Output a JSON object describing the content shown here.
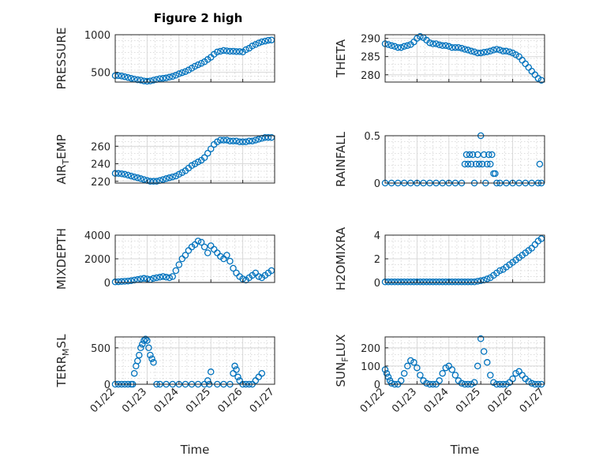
{
  "figure": {
    "title": "Figure 2 high",
    "background": "#ffffff",
    "marker_color": "#0072bd",
    "marker": "open-circle"
  },
  "chart_data": [
    {
      "type": "scatter",
      "ylabel": "PRESSURE",
      "xlabel": "",
      "xlim": [
        0,
        5
      ],
      "ylim": [
        370,
        1000
      ],
      "yticks": [
        500,
        1000
      ],
      "yticklabels": [
        "500",
        "1000"
      ],
      "xticklabels": [],
      "grid": true,
      "x": [
        0,
        0.1,
        0.2,
        0.3,
        0.4,
        0.5,
        0.6,
        0.7,
        0.8,
        0.9,
        1.0,
        1.1,
        1.2,
        1.3,
        1.4,
        1.5,
        1.6,
        1.7,
        1.8,
        1.9,
        2.0,
        2.1,
        2.2,
        2.3,
        2.4,
        2.5,
        2.6,
        2.7,
        2.8,
        2.9,
        3.0,
        3.1,
        3.2,
        3.3,
        3.4,
        3.5,
        3.6,
        3.7,
        3.8,
        3.9,
        4.0,
        4.1,
        4.2,
        4.3,
        4.4,
        4.5,
        4.6,
        4.7,
        4.8,
        4.9
      ],
      "y": [
        455,
        455,
        450,
        440,
        430,
        420,
        410,
        400,
        395,
        385,
        380,
        385,
        395,
        405,
        415,
        420,
        425,
        435,
        445,
        460,
        480,
        495,
        510,
        530,
        555,
        580,
        600,
        620,
        640,
        670,
        700,
        740,
        770,
        780,
        790,
        785,
        780,
        780,
        775,
        775,
        770,
        800,
        820,
        850,
        870,
        890,
        905,
        915,
        925,
        930
      ]
    },
    {
      "type": "scatter",
      "ylabel": "THETA",
      "xlabel": "",
      "xlim": [
        0,
        5
      ],
      "ylim": [
        278,
        291
      ],
      "yticks": [
        280,
        285,
        290
      ],
      "yticklabels": [
        "280",
        "285",
        "290"
      ],
      "xticklabels": [],
      "grid": true,
      "x": [
        0,
        0.1,
        0.2,
        0.3,
        0.4,
        0.5,
        0.6,
        0.7,
        0.8,
        0.9,
        1.0,
        1.1,
        1.2,
        1.3,
        1.4,
        1.5,
        1.6,
        1.7,
        1.8,
        1.9,
        2.0,
        2.1,
        2.2,
        2.3,
        2.4,
        2.5,
        2.6,
        2.7,
        2.8,
        2.9,
        3.0,
        3.1,
        3.2,
        3.3,
        3.4,
        3.5,
        3.6,
        3.7,
        3.8,
        3.9,
        4.0,
        4.1,
        4.2,
        4.3,
        4.4,
        4.5,
        4.6,
        4.7,
        4.8,
        4.9
      ],
      "y": [
        288.5,
        288.3,
        288,
        287.8,
        287.5,
        287.5,
        287.8,
        288,
        288.3,
        289,
        290,
        290.5,
        290.2,
        289.5,
        288.8,
        288.5,
        288.5,
        288.2,
        288,
        288,
        287.8,
        287.5,
        287.5,
        287.5,
        287.3,
        287,
        286.8,
        286.5,
        286.3,
        286,
        286,
        286.2,
        286.3,
        286.5,
        286.8,
        287,
        286.8,
        286.5,
        286.5,
        286.3,
        286,
        285.5,
        285,
        284,
        283,
        282,
        281,
        280,
        279,
        278.5
      ]
    },
    {
      "type": "scatter",
      "ylabel": "AIR_TEMP",
      "xlabel": "",
      "xlim": [
        0,
        5
      ],
      "ylim": [
        218,
        272
      ],
      "yticks": [
        220,
        240,
        260
      ],
      "yticklabels": [
        "220",
        "240",
        "260"
      ],
      "xticklabels": [],
      "grid": true,
      "x": [
        0,
        0.1,
        0.2,
        0.3,
        0.4,
        0.5,
        0.6,
        0.7,
        0.8,
        0.9,
        1.0,
        1.1,
        1.2,
        1.3,
        1.4,
        1.5,
        1.6,
        1.7,
        1.8,
        1.9,
        2.0,
        2.1,
        2.2,
        2.3,
        2.4,
        2.5,
        2.6,
        2.7,
        2.8,
        2.9,
        3.0,
        3.1,
        3.2,
        3.3,
        3.4,
        3.5,
        3.6,
        3.7,
        3.8,
        3.9,
        4.0,
        4.1,
        4.2,
        4.3,
        4.4,
        4.5,
        4.6,
        4.7,
        4.8,
        4.9
      ],
      "y": [
        229,
        229,
        228.5,
        228,
        227,
        226,
        225,
        224,
        223,
        222,
        221,
        220,
        220,
        220,
        221,
        222,
        223,
        224,
        225,
        226,
        228,
        230,
        232,
        235,
        238,
        240,
        242,
        244,
        247,
        252,
        257,
        262,
        265,
        267,
        267,
        267,
        266,
        266,
        266,
        265,
        265,
        265,
        266,
        266,
        267,
        268,
        269,
        270,
        270,
        270
      ]
    },
    {
      "type": "scatter",
      "ylabel": "RAINFALL",
      "xlabel": "",
      "xlim": [
        0,
        5
      ],
      "ylim": [
        0,
        0.5
      ],
      "yticks": [
        0,
        0.5
      ],
      "yticklabels": [
        "0",
        "0.5"
      ],
      "xticklabels": [],
      "grid": true,
      "x": [
        0,
        0.2,
        0.4,
        0.6,
        0.8,
        1.0,
        1.2,
        1.4,
        1.6,
        1.8,
        2.0,
        2.2,
        2.4,
        2.5,
        2.55,
        2.6,
        2.65,
        2.7,
        2.75,
        2.8,
        2.85,
        2.9,
        2.95,
        3.0,
        3.05,
        3.1,
        3.15,
        3.2,
        3.25,
        3.3,
        3.35,
        3.4,
        3.45,
        3.5,
        3.6,
        3.8,
        4.0,
        4.2,
        4.4,
        4.6,
        4.8,
        4.85,
        4.9
      ],
      "y": [
        0,
        0,
        0,
        0,
        0,
        0,
        0,
        0,
        0,
        0,
        0,
        0,
        0,
        0.2,
        0.3,
        0.2,
        0.3,
        0.2,
        0.3,
        0,
        0.2,
        0.3,
        0.2,
        0.5,
        0.2,
        0.3,
        0,
        0.2,
        0.3,
        0.2,
        0.3,
        0.1,
        0.1,
        0,
        0,
        0,
        0,
        0,
        0,
        0,
        0,
        0.2,
        0
      ]
    },
    {
      "type": "scatter",
      "ylabel": "MIXDEPTH",
      "xlabel": "",
      "xlim": [
        0,
        5
      ],
      "ylim": [
        0,
        4000
      ],
      "yticks": [
        0,
        2000,
        4000
      ],
      "yticklabels": [
        "0",
        "2000",
        "4000"
      ],
      "xticklabels": [],
      "grid": true,
      "x": [
        0,
        0.1,
        0.2,
        0.3,
        0.4,
        0.5,
        0.6,
        0.7,
        0.8,
        0.9,
        1.0,
        1.1,
        1.2,
        1.3,
        1.4,
        1.5,
        1.6,
        1.7,
        1.8,
        1.9,
        2.0,
        2.1,
        2.2,
        2.3,
        2.4,
        2.5,
        2.6,
        2.7,
        2.8,
        2.9,
        3.0,
        3.1,
        3.2,
        3.3,
        3.4,
        3.5,
        3.6,
        3.7,
        3.8,
        3.9,
        4.0,
        4.1,
        4.2,
        4.3,
        4.4,
        4.5,
        4.6,
        4.7,
        4.8,
        4.9
      ],
      "y": [
        50,
        60,
        80,
        100,
        120,
        150,
        200,
        250,
        300,
        350,
        300,
        250,
        350,
        400,
        450,
        500,
        450,
        400,
        500,
        1000,
        1500,
        2000,
        2300,
        2700,
        3000,
        3200,
        3500,
        3400,
        3000,
        2500,
        3100,
        2800,
        2500,
        2200,
        2000,
        2300,
        1800,
        1200,
        800,
        500,
        300,
        200,
        400,
        600,
        800,
        500,
        400,
        600,
        800,
        1000
      ]
    },
    {
      "type": "scatter",
      "ylabel": "H2OMIXRA",
      "xlabel": "",
      "xlim": [
        0,
        5
      ],
      "ylim": [
        0,
        4
      ],
      "yticks": [
        0,
        2,
        4
      ],
      "yticklabels": [
        "0",
        "2",
        "4"
      ],
      "xticklabels": [],
      "grid": true,
      "x": [
        0,
        0.1,
        0.2,
        0.3,
        0.4,
        0.5,
        0.6,
        0.7,
        0.8,
        0.9,
        1.0,
        1.1,
        1.2,
        1.3,
        1.4,
        1.5,
        1.6,
        1.7,
        1.8,
        1.9,
        2.0,
        2.1,
        2.2,
        2.3,
        2.4,
        2.5,
        2.6,
        2.7,
        2.8,
        2.9,
        3.0,
        3.1,
        3.2,
        3.3,
        3.4,
        3.5,
        3.6,
        3.7,
        3.8,
        3.9,
        4.0,
        4.1,
        4.2,
        4.3,
        4.4,
        4.5,
        4.6,
        4.7,
        4.8,
        4.9
      ],
      "y": [
        0.05,
        0.05,
        0.05,
        0.05,
        0.05,
        0.05,
        0.05,
        0.05,
        0.05,
        0.05,
        0.05,
        0.05,
        0.05,
        0.05,
        0.05,
        0.05,
        0.05,
        0.05,
        0.05,
        0.05,
        0.05,
        0.05,
        0.05,
        0.05,
        0.05,
        0.05,
        0.05,
        0.05,
        0.05,
        0.1,
        0.15,
        0.2,
        0.3,
        0.4,
        0.6,
        0.8,
        1.0,
        1.1,
        1.3,
        1.5,
        1.7,
        1.9,
        2.1,
        2.3,
        2.5,
        2.7,
        2.9,
        3.2,
        3.5,
        3.7
      ]
    },
    {
      "type": "scatter",
      "ylabel": "TERR_MSL",
      "xlabel": "Time",
      "xlim": [
        0,
        5
      ],
      "ylim": [
        0,
        650
      ],
      "yticks": [
        0,
        500
      ],
      "yticklabels": [
        "0",
        "500"
      ],
      "xticklabels": [
        "01/22",
        "01/23",
        "01/24",
        "01/25",
        "01/26",
        "01/27"
      ],
      "grid": true,
      "x": [
        0,
        0.1,
        0.2,
        0.3,
        0.4,
        0.5,
        0.55,
        0.6,
        0.65,
        0.7,
        0.75,
        0.8,
        0.85,
        0.9,
        0.95,
        1.0,
        1.05,
        1.1,
        1.15,
        1.2,
        1.3,
        1.4,
        1.6,
        1.8,
        2.0,
        2.2,
        2.4,
        2.6,
        2.8,
        2.9,
        2.95,
        3.0,
        3.2,
        3.4,
        3.6,
        3.7,
        3.75,
        3.8,
        3.85,
        3.9,
        4.0,
        4.1,
        4.2,
        4.3,
        4.4,
        4.5,
        4.6
      ],
      "y": [
        0,
        0,
        0,
        0,
        0,
        0,
        0,
        150,
        250,
        320,
        400,
        500,
        550,
        600,
        620,
        600,
        500,
        400,
        350,
        300,
        0,
        0,
        0,
        0,
        0,
        0,
        0,
        0,
        0,
        50,
        0,
        170,
        0,
        0,
        0,
        150,
        250,
        200,
        100,
        50,
        0,
        0,
        0,
        0,
        50,
        100,
        150
      ]
    },
    {
      "type": "scatter",
      "ylabel": "SUN_FLUX",
      "xlabel": "Time",
      "xlim": [
        0,
        5
      ],
      "ylim": [
        0,
        260
      ],
      "yticks": [
        0,
        100,
        200
      ],
      "yticklabels": [
        "0",
        "100",
        "200"
      ],
      "xticklabels": [
        "01/22",
        "01/23",
        "01/24",
        "01/25",
        "01/26",
        "01/27"
      ],
      "grid": true,
      "x": [
        0,
        0.05,
        0.1,
        0.15,
        0.2,
        0.3,
        0.4,
        0.5,
        0.6,
        0.7,
        0.8,
        0.9,
        1.0,
        1.1,
        1.2,
        1.3,
        1.4,
        1.5,
        1.6,
        1.7,
        1.8,
        1.9,
        2.0,
        2.1,
        2.2,
        2.3,
        2.4,
        2.5,
        2.6,
        2.7,
        2.8,
        2.9,
        3.0,
        3.1,
        3.2,
        3.3,
        3.4,
        3.5,
        3.6,
        3.7,
        3.8,
        3.9,
        4.0,
        4.1,
        4.2,
        4.3,
        4.4,
        4.5,
        4.6,
        4.7,
        4.8,
        4.9
      ],
      "y": [
        80,
        60,
        40,
        20,
        5,
        0,
        0,
        20,
        60,
        100,
        130,
        120,
        90,
        50,
        20,
        5,
        0,
        0,
        0,
        20,
        60,
        90,
        100,
        80,
        50,
        20,
        5,
        0,
        0,
        0,
        10,
        100,
        250,
        180,
        120,
        50,
        10,
        0,
        0,
        0,
        0,
        10,
        30,
        60,
        70,
        50,
        30,
        15,
        5,
        0,
        0,
        0
      ]
    }
  ]
}
